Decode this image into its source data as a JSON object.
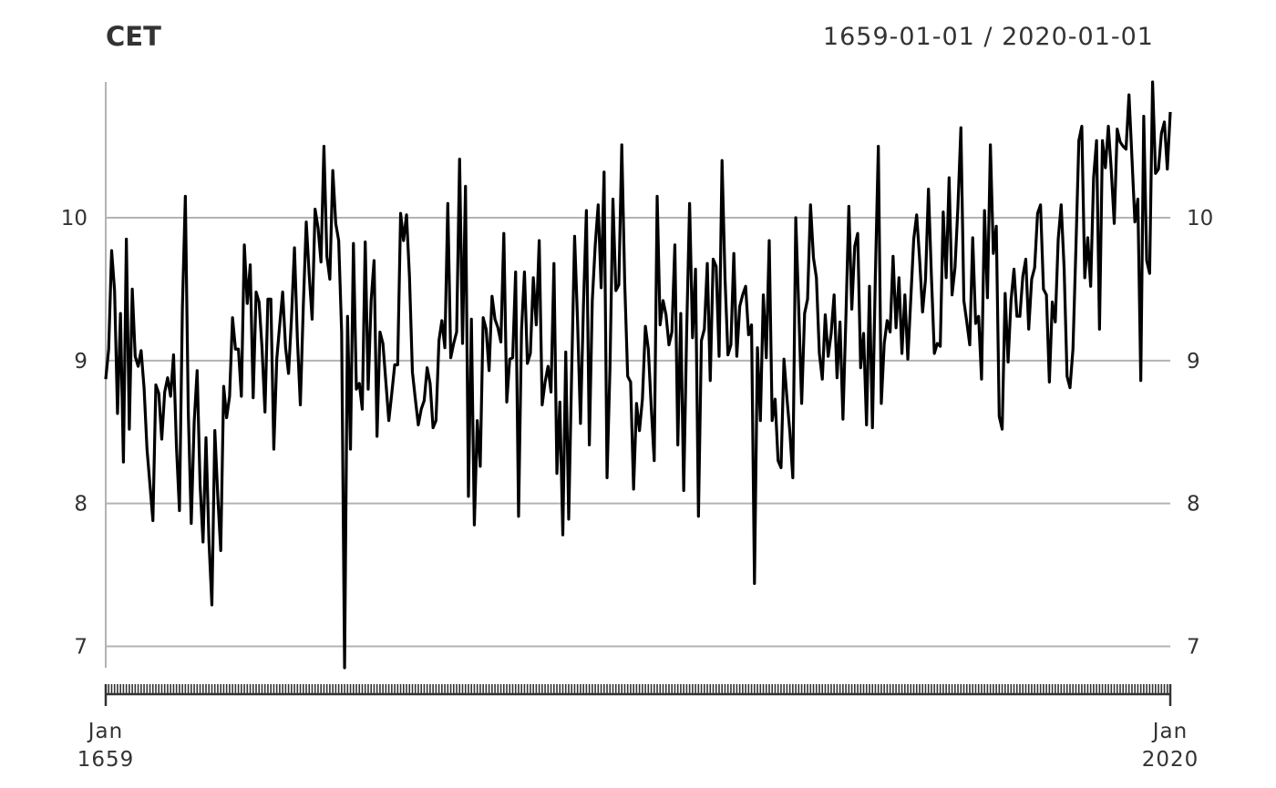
{
  "chart_data": {
    "type": "line",
    "title": "CET",
    "subtitle": "1659-01-01 / 2020-01-01",
    "ylim": [
      6.85,
      10.95
    ],
    "yticks": [
      7,
      8,
      9,
      10
    ],
    "grid": true,
    "x_start": "1659-01-01",
    "x_end": "2020-01-01",
    "x_tick_labels": [
      {
        "month": "Jan",
        "year": "1659",
        "date": "1659-01-01"
      },
      {
        "month": "Jan",
        "year": "2020",
        "date": "2020-01-01"
      }
    ],
    "series": [
      {
        "values": [
          8.87,
          9.08,
          9.77,
          9.49,
          8.63,
          9.33,
          8.29,
          9.85,
          8.52,
          9.5,
          9.03,
          8.96,
          9.07,
          8.81,
          8.38,
          8.13,
          7.88,
          8.83,
          8.77,
          8.45,
          8.78,
          8.88,
          8.75,
          9.04,
          8.39,
          7.95,
          9.37,
          10.15,
          8.64,
          7.86,
          8.57,
          8.93,
          8.13,
          7.73,
          8.46,
          7.74,
          7.29,
          8.51,
          8.05,
          7.67,
          8.82,
          8.6,
          8.75,
          9.3,
          9.08,
          9.08,
          8.75,
          9.81,
          9.4,
          9.67,
          8.74,
          9.48,
          9.41,
          9.09,
          8.64,
          9.43,
          9.43,
          8.38,
          9.01,
          9.25,
          9.48,
          9.09,
          8.91,
          9.3,
          9.79,
          9.15,
          8.69,
          9.38,
          9.97,
          9.6,
          9.29,
          10.06,
          9.93,
          9.69,
          10.5,
          9.73,
          9.57,
          10.33,
          9.96,
          9.84,
          9.2,
          6.85,
          9.31,
          8.38,
          9.82,
          8.8,
          8.84,
          8.66,
          9.83,
          8.8,
          9.42,
          9.7,
          8.47,
          9.2,
          9.12,
          8.85,
          8.58,
          8.77,
          8.97,
          8.97,
          10.03,
          9.84,
          10.02,
          9.59,
          8.92,
          8.73,
          8.55,
          8.66,
          8.72,
          8.95,
          8.84,
          8.53,
          8.58,
          9.14,
          9.28,
          9.09,
          10.1,
          9.02,
          9.12,
          9.2,
          10.41,
          9.12,
          10.22,
          8.05,
          9.29,
          7.85,
          8.58,
          8.26,
          9.3,
          9.22,
          8.93,
          9.45,
          9.29,
          9.23,
          9.13,
          9.89,
          8.71,
          9.01,
          9.02,
          9.62,
          7.91,
          9.21,
          9.62,
          8.98,
          9.05,
          9.58,
          9.25,
          9.84,
          8.69,
          8.85,
          8.96,
          8.78,
          9.68,
          8.21,
          8.71,
          7.78,
          9.06,
          7.89,
          8.91,
          9.87,
          9.28,
          8.56,
          9.38,
          10.05,
          8.41,
          9.42,
          9.81,
          10.09,
          9.51,
          10.32,
          8.18,
          8.95,
          10.13,
          9.49,
          9.53,
          10.51,
          9.54,
          8.89,
          8.85,
          8.1,
          8.7,
          8.51,
          8.73,
          9.24,
          9.08,
          8.67,
          8.3,
          10.15,
          9.25,
          9.42,
          9.32,
          9.11,
          9.2,
          9.81,
          8.41,
          9.33,
          8.09,
          9.2,
          10.1,
          9.16,
          9.64,
          7.91,
          9.14,
          9.22,
          9.68,
          8.86,
          9.71,
          9.66,
          9.03,
          10.4,
          9.58,
          9.04,
          9.11,
          9.75,
          9.03,
          9.38,
          9.46,
          9.52,
          9.18,
          9.25,
          7.44,
          9.09,
          8.58,
          9.46,
          9.02,
          9.84,
          8.58,
          8.73,
          8.3,
          8.25,
          9.01,
          8.74,
          8.5,
          8.18,
          10.0,
          9.37,
          8.7,
          9.33,
          9.43,
          10.09,
          9.72,
          9.58,
          9.05,
          8.87,
          9.32,
          9.03,
          9.19,
          9.46,
          8.88,
          9.27,
          8.59,
          9.3,
          10.08,
          9.36,
          9.8,
          9.89,
          8.95,
          9.19,
          8.55,
          9.52,
          8.53,
          9.6,
          10.5,
          8.7,
          9.12,
          9.28,
          9.2,
          9.73,
          9.23,
          9.58,
          9.05,
          9.46,
          9.01,
          9.43,
          9.85,
          10.02,
          9.71,
          9.34,
          9.57,
          10.2,
          9.59,
          9.05,
          9.12,
          9.1,
          10.04,
          9.58,
          10.28,
          9.46,
          9.65,
          10.08,
          10.63,
          9.42,
          9.27,
          9.11,
          9.86,
          9.26,
          9.31,
          8.87,
          10.05,
          9.44,
          10.51,
          9.75,
          9.94,
          8.61,
          8.52,
          9.47,
          8.99,
          9.42,
          9.64,
          9.31,
          9.31,
          9.59,
          9.71,
          9.22,
          9.57,
          9.65,
          10.03,
          10.09,
          9.5,
          9.46,
          8.85,
          9.41,
          9.27,
          9.85,
          10.09,
          9.65,
          8.89,
          8.81,
          9.08,
          9.79,
          10.54,
          10.64,
          9.58,
          9.86,
          9.52,
          10.28,
          10.54,
          9.22,
          10.54,
          10.35,
          10.64,
          10.33,
          9.96,
          10.62,
          10.53,
          10.5,
          10.48,
          10.86,
          10.42,
          9.97,
          10.13,
          8.86,
          10.71,
          9.7,
          9.61,
          10.95,
          10.31,
          10.34,
          10.59,
          10.67,
          10.34,
          10.74
        ]
      }
    ]
  }
}
